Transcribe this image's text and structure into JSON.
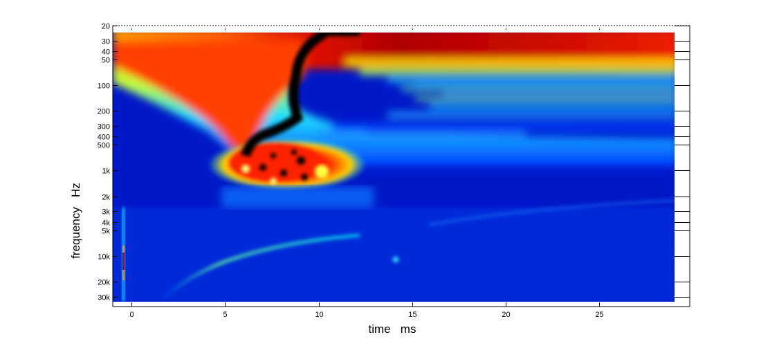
{
  "chart_data": {
    "type": "heatmap",
    "xlabel": "time   ms",
    "ylabel": "frequency   Hz",
    "x_ticks": [
      {
        "value": 0,
        "label": "0"
      },
      {
        "value": 5,
        "label": "5"
      },
      {
        "value": 10,
        "label": "10"
      },
      {
        "value": 15,
        "label": "15"
      },
      {
        "value": 20,
        "label": "20"
      },
      {
        "value": 25,
        "label": "25"
      }
    ],
    "xlim": [
      -1,
      29
    ],
    "y_scale": "log",
    "y_reversed": true,
    "ylim": [
      20,
      40000
    ],
    "y_ticks": [
      {
        "value": 20,
        "label": "20"
      },
      {
        "value": 30,
        "label": "30"
      },
      {
        "value": 40,
        "label": "40"
      },
      {
        "value": 50,
        "label": "50"
      },
      {
        "value": 100,
        "label": "100"
      },
      {
        "value": 200,
        "label": "200"
      },
      {
        "value": 300,
        "label": "300"
      },
      {
        "value": 400,
        "label": "400"
      },
      {
        "value": 500,
        "label": "500"
      },
      {
        "value": 1000,
        "label": "1k"
      },
      {
        "value": 2000,
        "label": "2k"
      },
      {
        "value": 3000,
        "label": "3k"
      },
      {
        "value": 4000,
        "label": "4k"
      },
      {
        "value": 5000,
        "label": "5k"
      },
      {
        "value": 10000,
        "label": "10k"
      },
      {
        "value": 20000,
        "label": "20k"
      },
      {
        "value": 30000,
        "label": "30k"
      }
    ],
    "colormap": "jet",
    "grid": false
  }
}
